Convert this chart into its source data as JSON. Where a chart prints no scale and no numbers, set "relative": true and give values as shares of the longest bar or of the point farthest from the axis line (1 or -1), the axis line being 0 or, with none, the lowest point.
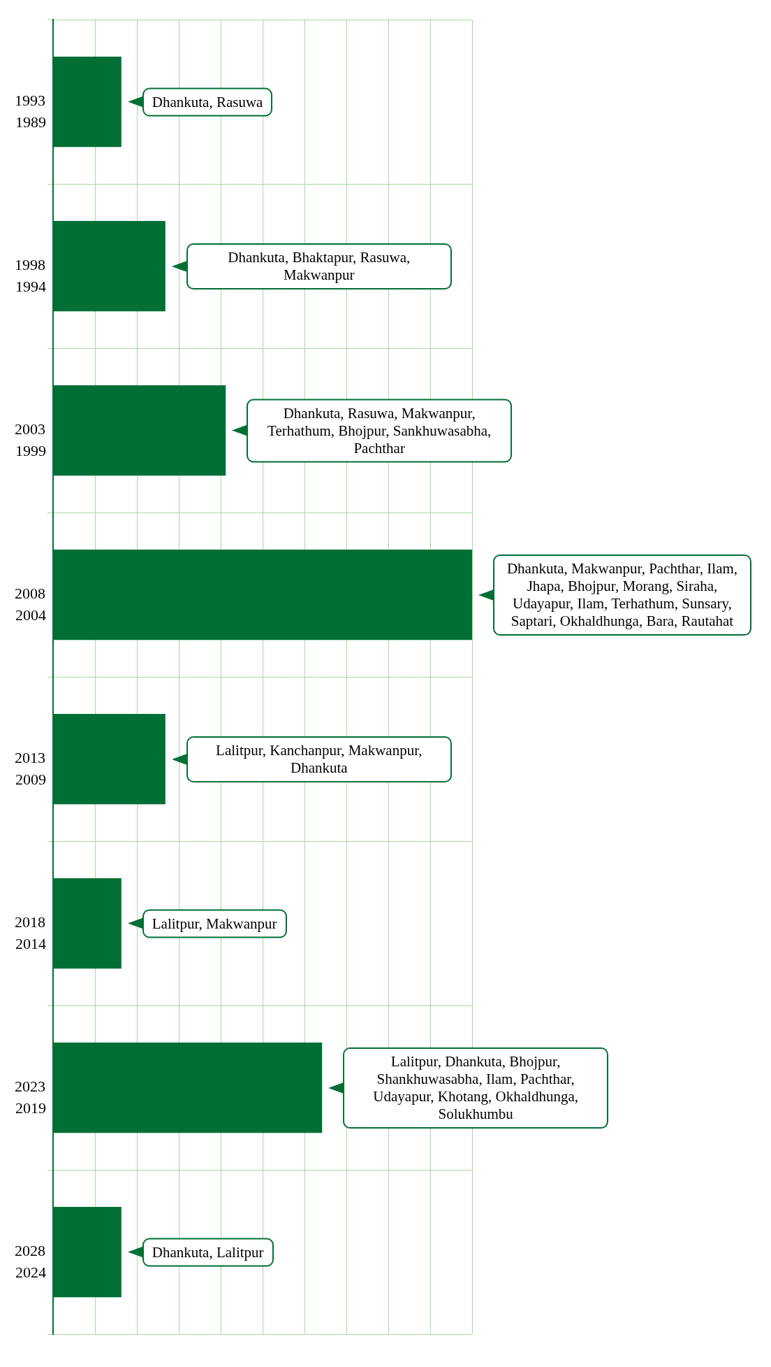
{
  "chart_data": {
    "type": "bar",
    "orientation": "horizontal",
    "relative": true,
    "grid": true,
    "legend": false,
    "categories": [
      "1993",
      "1998",
      "2003",
      "2008",
      "2013",
      "2018",
      "2023",
      "2028"
    ],
    "values": [
      0.163,
      0.268,
      0.412,
      1,
      0.268,
      0.163,
      0.642,
      0.163
    ],
    "color": "#006f35",
    "annotations": [
      "1989",
      "1994",
      "1999",
      "2004",
      "2009",
      "2014",
      "2019",
      "2024",
      "Dhankuta, Rasuwa",
      "Dhankuta, Bhaktapur, Rasuwa, Makwanpur",
      "Dhankuta, Rasuwa, Makwanpur, Terhathum, Bhojpur, Sankhuwasabha, Pachthar",
      "Dhankuta, Makwanpur, Pachthar, Ilam, Jhapa, Bhojpur, Morang, Siraha, Udayapur, Ilam, Terhathum, Sunsary, Saptari, Okhaldhunga, Bara, Rautahat",
      "Lalitpur, Kanchanpur, Makwanpur, Dhankuta",
      "Lalitpur, Makwanpur",
      "Lalitpur, Dhankuta, Bhojpur, Shankhuwasabha, Ilam, Pachthar, Udayapur, Khotang, Okhaldhunga, Solukhumbu",
      "Dhankuta, Lalitpur"
    ]
  }
}
